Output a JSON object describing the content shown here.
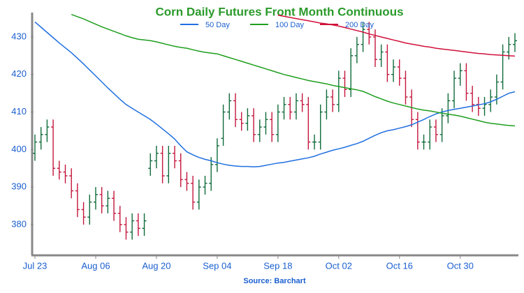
{
  "chart_data": {
    "type": "ohlc",
    "title": "Corn Daily Futures Front Month Continuous",
    "source": "Source: Barchart",
    "categories": [
      "Jul 23",
      null,
      null,
      null,
      null,
      null,
      null,
      null,
      null,
      null,
      "Aug 06",
      null,
      null,
      null,
      null,
      null,
      null,
      null,
      null,
      null,
      "Aug 20",
      null,
      null,
      null,
      null,
      null,
      null,
      null,
      null,
      null,
      "Sep 04",
      null,
      null,
      null,
      null,
      null,
      null,
      null,
      null,
      null,
      "Sep 18",
      null,
      null,
      null,
      null,
      null,
      null,
      null,
      null,
      null,
      "Oct 02",
      null,
      null,
      null,
      null,
      null,
      null,
      null,
      null,
      null,
      "Oct 16",
      null,
      null,
      null,
      null,
      null,
      null,
      null,
      null,
      null,
      "Oct 30",
      null,
      null,
      null,
      null,
      null,
      null,
      null,
      null,
      null
    ],
    "open": [
      399,
      402,
      404,
      406,
      395,
      394,
      393,
      389,
      384,
      382,
      386,
      388,
      385,
      387,
      383,
      380,
      378,
      381,
      379,
      395,
      397,
      399,
      393,
      399,
      397,
      392,
      391,
      386,
      390,
      391,
      396,
      403,
      410,
      413,
      408,
      407,
      409,
      404,
      406,
      408,
      404,
      410,
      412,
      410,
      413,
      412,
      402,
      402,
      410,
      414,
      412,
      419,
      416,
      425,
      428,
      432,
      430,
      424,
      426,
      420,
      422,
      419,
      414,
      408,
      402,
      402,
      406,
      404,
      409,
      413,
      419,
      421,
      415,
      412,
      411,
      412,
      414,
      418,
      426,
      428
    ],
    "high": [
      404,
      406,
      408,
      408,
      397,
      396,
      395,
      391,
      386,
      388,
      390,
      390,
      389,
      389,
      385,
      382,
      383,
      383,
      383,
      399,
      401,
      401,
      401,
      401,
      399,
      394,
      393,
      392,
      393,
      398,
      403,
      412,
      415,
      415,
      410,
      411,
      411,
      408,
      410,
      410,
      412,
      414,
      414,
      415,
      415,
      414,
      404,
      412,
      416,
      416,
      421,
      421,
      427,
      430,
      434,
      434,
      432,
      428,
      428,
      424,
      424,
      421,
      416,
      410,
      404,
      408,
      408,
      411,
      415,
      421,
      423,
      423,
      417,
      414,
      414,
      416,
      420,
      428,
      430,
      431
    ],
    "low": [
      397,
      400,
      402,
      393,
      392,
      391,
      387,
      382,
      380,
      380,
      384,
      383,
      383,
      381,
      378,
      376,
      376,
      377,
      377,
      393,
      395,
      391,
      391,
      395,
      390,
      389,
      384,
      384,
      388,
      389,
      394,
      401,
      408,
      406,
      405,
      405,
      402,
      402,
      404,
      402,
      402,
      408,
      408,
      408,
      410,
      400,
      400,
      400,
      408,
      410,
      410,
      414,
      414,
      423,
      426,
      428,
      422,
      422,
      418,
      418,
      417,
      412,
      406,
      400,
      400,
      400,
      402,
      402,
      407,
      411,
      417,
      413,
      410,
      409,
      409,
      410,
      412,
      416,
      424,
      426
    ],
    "close": [
      402,
      404,
      406,
      395,
      394,
      393,
      389,
      384,
      382,
      386,
      388,
      385,
      387,
      383,
      380,
      378,
      381,
      379,
      381,
      397,
      399,
      393,
      399,
      397,
      392,
      391,
      386,
      390,
      391,
      396,
      401,
      410,
      413,
      408,
      407,
      409,
      404,
      406,
      408,
      404,
      410,
      412,
      410,
      413,
      412,
      402,
      402,
      410,
      414,
      412,
      419,
      416,
      425,
      428,
      432,
      430,
      424,
      426,
      420,
      422,
      419,
      414,
      408,
      402,
      402,
      406,
      404,
      409,
      413,
      419,
      421,
      415,
      412,
      411,
      412,
      414,
      418,
      426,
      428,
      429
    ],
    "up_color": "#0f6b3a",
    "down_color": "#c4163c",
    "series": [
      {
        "name": "50 Day",
        "color": "#1f6fe0",
        "values": [
          434,
          432.6,
          431.2,
          429.8,
          428.4,
          427.1,
          425.8,
          424.3,
          422.8,
          421.2,
          419.6,
          418,
          416.4,
          414.9,
          413.4,
          412,
          411,
          410,
          409,
          408,
          406.8,
          405.5,
          404.2,
          402.8,
          401,
          399.4,
          398.6,
          397.9,
          397.4,
          397,
          396.5,
          396.1,
          395.8,
          395.6,
          395.5,
          395.5,
          395.4,
          395.5,
          395.8,
          396.1,
          396.4,
          396.6,
          396.9,
          397.2,
          397.5,
          397.8,
          398.2,
          398.8,
          399.3,
          399.8,
          400.2,
          400.6,
          401.1,
          401.6,
          402.2,
          403,
          403.8,
          404.5,
          405,
          405.3,
          405.7,
          406.1,
          406.6,
          407.3,
          408,
          408.8,
          409.5,
          410,
          410.4,
          410.7,
          411,
          411.3,
          411.6,
          411.9,
          412.2,
          412.7,
          413.4,
          414.2,
          415,
          415.4
        ]
      },
      {
        "name": "100 Day",
        "color": "#1e9e1e",
        "values": [
          null,
          null,
          null,
          null,
          null,
          null,
          436,
          435.4,
          434.8,
          434.1,
          433.4,
          432.7,
          432.1,
          431.5,
          430.9,
          430.3,
          429.8,
          429.4,
          429.2,
          429,
          428.7,
          428.3,
          427.9,
          427.5,
          427.2,
          427,
          426.6,
          426.2,
          425.9,
          425.7,
          425.5,
          425,
          424.5,
          424,
          423.5,
          423,
          422.5,
          422,
          421.5,
          421,
          420.5,
          420,
          419.6,
          419.2,
          418.8,
          418.4,
          418.1,
          417.8,
          417.5,
          417.1,
          416.8,
          416.5,
          416.2,
          415.9,
          415.5,
          414.8,
          414.1,
          413.5,
          412.9,
          412.4,
          412,
          411.6,
          411.2,
          410.8,
          410.5,
          410.3,
          410,
          409.7,
          409.4,
          409.2,
          408.9,
          408.5,
          408.1,
          407.7,
          407.3,
          407,
          406.8,
          406.6,
          406.4,
          406.3
        ]
      },
      {
        "name": "200 Day",
        "color": "#d0103a",
        "values": [
          null,
          null,
          null,
          null,
          null,
          null,
          null,
          null,
          null,
          null,
          null,
          null,
          null,
          null,
          null,
          null,
          null,
          null,
          null,
          null,
          null,
          null,
          null,
          null,
          null,
          null,
          null,
          null,
          null,
          null,
          null,
          null,
          null,
          null,
          null,
          null,
          null,
          null,
          null,
          null,
          435.8,
          435.5,
          435.2,
          434.9,
          434.6,
          434.3,
          434,
          433.7,
          433.5,
          433.2,
          432.9,
          432.5,
          432.1,
          431.7,
          431.3,
          430.8,
          430.4,
          430,
          429.6,
          429.2,
          428.8,
          428.4,
          428.1,
          427.8,
          427.5,
          427.3,
          427,
          426.8,
          426.6,
          426.4,
          426.2,
          426,
          425.8,
          425.6,
          425.5,
          425.3,
          425.2,
          425.1,
          425,
          424.9
        ]
      }
    ],
    "ylim": [
      372,
      436.5
    ],
    "yticks": [
      380,
      390,
      400,
      410,
      420,
      430
    ]
  }
}
